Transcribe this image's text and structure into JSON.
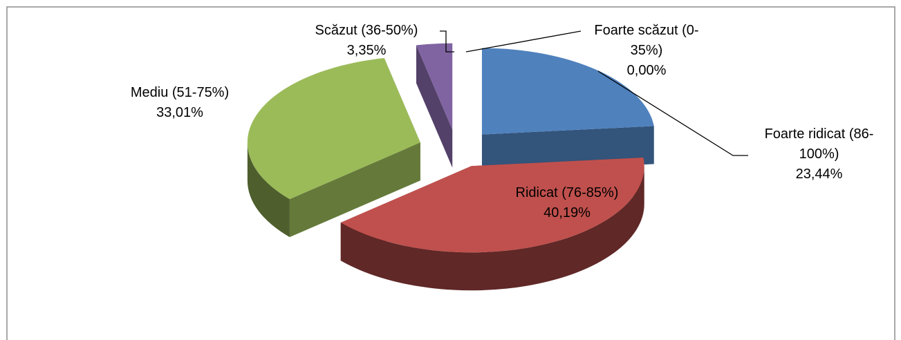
{
  "chart_data": {
    "type": "pie",
    "categories": [
      "Foarte ridicat (86-100%)",
      "Ridicat (76-85%)",
      "Mediu (51-75%)",
      "Scăzut (36-50%)",
      "Foarte scăzut (0-35%)"
    ],
    "values": [
      23.44,
      40.19,
      33.01,
      3.35,
      0
    ],
    "value_labels": [
      "23,44%",
      "40,19%",
      "33,01%",
      "3,35%",
      "0,00%"
    ],
    "colors": [
      "#4f81bd",
      "#c0504d",
      "#9bbb59",
      "#8064a2",
      "#4bacc6"
    ]
  }
}
